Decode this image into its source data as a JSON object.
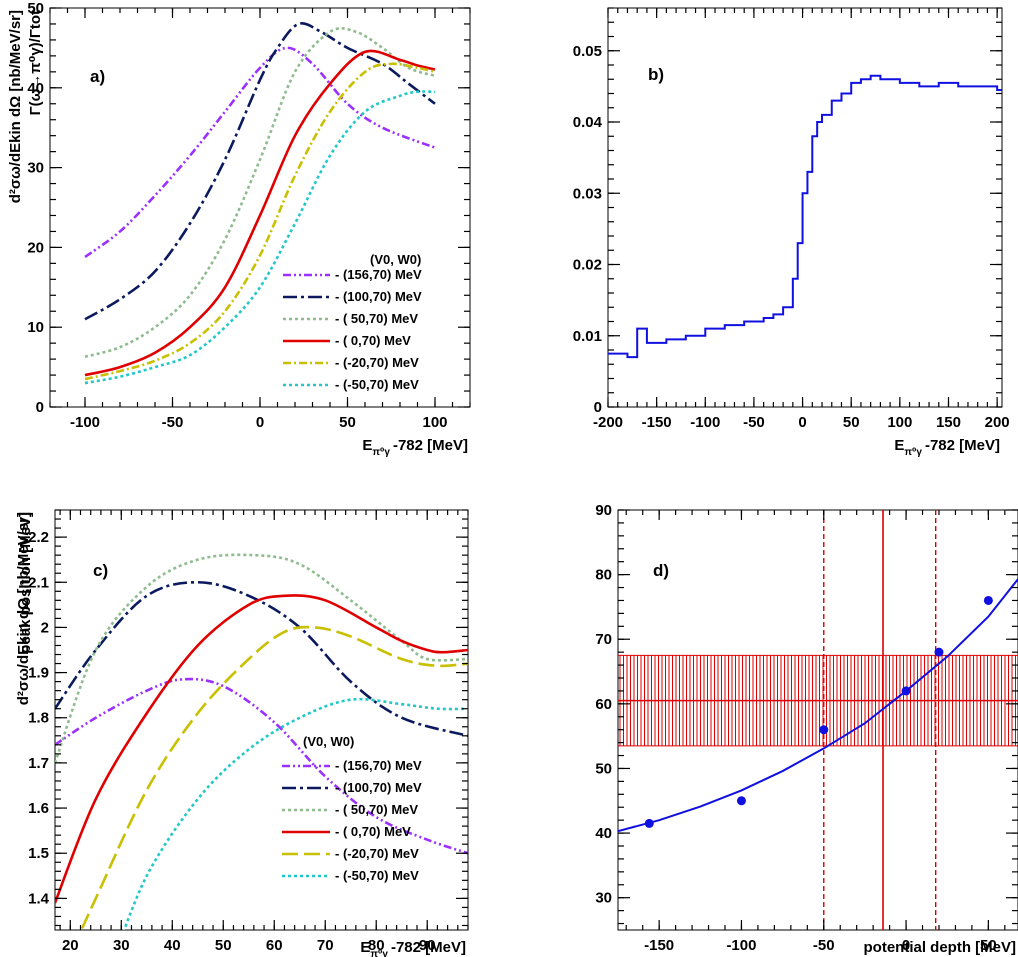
{
  "chart_data": [
    {
      "panel": "a",
      "type": "line",
      "label": "a)",
      "xlabel_main": "E",
      "xlabel_sub": "π⁰γ",
      "xlabel_rest": "-782 [MeV]",
      "ylabel": "d²σω/dEkin dΩ [nb/MeV/sr]",
      "xlim": [
        -120,
        120
      ],
      "ylim": [
        0,
        50
      ],
      "xticks": [
        -100,
        -50,
        0,
        50,
        100
      ],
      "yticks": [
        0,
        10,
        20,
        30,
        40,
        50
      ],
      "legend_title": "(V0, W0)",
      "legend_position": "bottom-right",
      "series": [
        {
          "name": "- (156,70) MeV",
          "color": "#9b30ff",
          "dash": "8,3,2,3,2,3",
          "x": [
            -100,
            -80,
            -60,
            -40,
            -20,
            0,
            15,
            30,
            50,
            70,
            100
          ],
          "y": [
            18.8,
            22,
            26.5,
            31.5,
            37,
            42.5,
            45,
            43,
            38,
            35,
            32.5
          ]
        },
        {
          "name": "- (100,70) MeV",
          "color": "#0b1a5e",
          "dash": "14,4,3,4",
          "x": [
            -100,
            -80,
            -60,
            -40,
            -20,
            0,
            10,
            22,
            35,
            50,
            70,
            85,
            100
          ],
          "y": [
            11,
            13.5,
            17,
            23,
            31,
            41,
            45,
            48,
            47,
            45,
            43,
            40.5,
            38
          ]
        },
        {
          "name": "- ( 50,70) MeV",
          "color": "#8fbc8f",
          "dash": "3,3",
          "x": [
            -100,
            -80,
            -60,
            -40,
            -20,
            0,
            20,
            40,
            55,
            70,
            85,
            100
          ],
          "y": [
            6.3,
            7.5,
            10,
            14,
            21,
            31,
            42,
            47,
            47,
            45,
            42.5,
            41.5
          ]
        },
        {
          "name": "- (  0,70) MeV",
          "color": "#e00000",
          "dash": "",
          "x": [
            -100,
            -80,
            -60,
            -40,
            -20,
            0,
            20,
            40,
            60,
            80,
            90,
            100
          ],
          "y": [
            4,
            5,
            6.8,
            10,
            15,
            24,
            34,
            40.5,
            44.5,
            43.5,
            42.8,
            42.3
          ]
        },
        {
          "name": "- (-20,70) MeV",
          "color": "#c8c000",
          "dash": "8,3,2,3",
          "x": [
            -100,
            -80,
            -60,
            -40,
            -20,
            0,
            20,
            40,
            60,
            75,
            90,
            100
          ],
          "y": [
            3.5,
            4.5,
            5.8,
            8,
            12,
            19,
            29,
            37,
            42,
            43,
            42.5,
            42
          ]
        },
        {
          "name": "- (-50,70) MeV",
          "color": "#20c8c8",
          "dash": "3,3",
          "x": [
            -100,
            -80,
            -60,
            -40,
            -20,
            0,
            20,
            40,
            60,
            80,
            90,
            100
          ],
          "y": [
            3,
            3.8,
            5,
            6.5,
            10,
            15,
            23,
            31.5,
            37,
            39,
            39.5,
            39.5
          ]
        }
      ]
    },
    {
      "panel": "b",
      "type": "line",
      "label": "b)",
      "xlabel_main": "E",
      "xlabel_sub": "π⁰γ",
      "xlabel_rest": "-782 [MeV]",
      "ylabel": "Γ(ω→π⁰γ)/Γtot",
      "xlim": [
        -200,
        205
      ],
      "ylim": [
        0,
        0.056
      ],
      "xticks": [
        -200,
        -150,
        -100,
        -50,
        0,
        50,
        100,
        150,
        200
      ],
      "yticks": [
        0,
        0.01,
        0.02,
        0.03,
        0.04,
        0.05
      ],
      "ytick_labels": [
        "0",
        "0.01",
        "0.02",
        "0.03",
        "0.04",
        "0.05"
      ],
      "series": [
        {
          "name": "",
          "color": "#1010e0",
          "step": true,
          "x": [
            -200,
            -180,
            -170,
            -160,
            -140,
            -120,
            -100,
            -80,
            -60,
            -40,
            -30,
            -20,
            -10,
            -5,
            0,
            5,
            10,
            15,
            20,
            30,
            40,
            50,
            60,
            70,
            80,
            100,
            120,
            140,
            160,
            180,
            200,
            205
          ],
          "y": [
            0.0075,
            0.007,
            0.011,
            0.009,
            0.0095,
            0.01,
            0.011,
            0.0115,
            0.012,
            0.0125,
            0.013,
            0.014,
            0.018,
            0.023,
            0.03,
            0.033,
            0.038,
            0.04,
            0.041,
            0.043,
            0.044,
            0.0455,
            0.046,
            0.0465,
            0.046,
            0.0455,
            0.045,
            0.0455,
            0.045,
            0.045,
            0.0445,
            0.0445
          ]
        }
      ]
    },
    {
      "panel": "c",
      "type": "line",
      "label": "c)",
      "xlabel_main": "E",
      "xlabel_sub": "π⁰γ",
      "xlabel_rest": "-782 [MeV]",
      "ylabel": "d²σω/dEkin dΩ [nb/MeV/sr]",
      "xlim": [
        17,
        98
      ],
      "ylim": [
        1.33,
        2.26
      ],
      "xticks": [
        20,
        30,
        40,
        50,
        60,
        70,
        80,
        90
      ],
      "yticks": [
        1.4,
        1.5,
        1.6,
        1.7,
        1.8,
        1.9,
        2.0,
        2.1,
        2.2
      ],
      "ytick_labels": [
        "1.4",
        "1.5",
        "1.6",
        "1.7",
        "1.8",
        "1.9",
        "2",
        "2.1",
        "2.2"
      ],
      "legend_title": "(V0, W0)",
      "legend_position": "bottom-right",
      "series": [
        {
          "name": "- (156,70) MeV",
          "color": "#9b30ff",
          "dash": "8,3,2,3,2,3",
          "x": [
            17,
            25,
            35,
            42,
            50,
            60,
            70,
            80,
            90,
            98
          ],
          "y": [
            1.74,
            1.8,
            1.86,
            1.885,
            1.87,
            1.79,
            1.67,
            1.58,
            1.53,
            1.5
          ]
        },
        {
          "name": "- (100,70) MeV",
          "color": "#0b1a5e",
          "dash": "14,4,3,4",
          "x": [
            17,
            25,
            35,
            45,
            55,
            65,
            75,
            85,
            98
          ],
          "y": [
            1.82,
            1.95,
            2.07,
            2.1,
            2.07,
            2.0,
            1.88,
            1.8,
            1.76
          ]
        },
        {
          "name": "- ( 50,70) MeV",
          "color": "#8fbc8f",
          "dash": "3,3",
          "x": [
            17,
            25,
            35,
            45,
            56,
            65,
            75,
            85,
            90,
            98
          ],
          "y": [
            1.7,
            1.95,
            2.09,
            2.15,
            2.16,
            2.14,
            2.06,
            1.97,
            1.93,
            1.93
          ]
        },
        {
          "name": "- (  0,70) MeV",
          "color": "#e00000",
          "dash": "",
          "x": [
            17,
            25,
            35,
            45,
            55,
            62,
            70,
            80,
            85,
            90,
            93,
            98
          ],
          "y": [
            1.39,
            1.62,
            1.81,
            1.96,
            2.05,
            2.07,
            2.06,
            2.0,
            1.97,
            1.95,
            1.945,
            1.95
          ]
        },
        {
          "name": "- (-20,70) MeV",
          "color": "#c8c000",
          "dash": "16,6",
          "x": [
            17,
            25,
            35,
            45,
            55,
            62,
            68,
            75,
            85,
            92,
            98
          ],
          "y": [
            1.2,
            1.4,
            1.64,
            1.81,
            1.93,
            1.99,
            2.0,
            1.98,
            1.93,
            1.915,
            1.92
          ]
        },
        {
          "name": "- (-50,70) MeV",
          "color": "#20c8c8",
          "dash": "3,3",
          "x": [
            28,
            35,
            45,
            55,
            65,
            75,
            85,
            92,
            98
          ],
          "y": [
            1.25,
            1.45,
            1.62,
            1.73,
            1.8,
            1.84,
            1.83,
            1.82,
            1.82
          ]
        }
      ]
    },
    {
      "panel": "d",
      "type": "scatter",
      "label": "d)",
      "xlabel": "potential depth [MeV]",
      "ylabel": "peak position [MeV]",
      "xlim": [
        -175,
        68
      ],
      "ylim": [
        25,
        90
      ],
      "xticks": [
        -150,
        -100,
        -50,
        0,
        50
      ],
      "yticks": [
        30,
        40,
        50,
        60,
        70,
        80,
        90
      ],
      "points": {
        "color": "#1010e0",
        "x": [
          -156,
          -100,
          -50,
          0,
          20,
          50
        ],
        "y": [
          41.5,
          45,
          56,
          62,
          68,
          76
        ]
      },
      "fit": {
        "color": "#1010e0",
        "x": [
          -175,
          -150,
          -125,
          -100,
          -75,
          -50,
          -25,
          0,
          25,
          50,
          68
        ],
        "y": [
          40.3,
          42.0,
          44.1,
          46.6,
          49.6,
          53.1,
          57.0,
          62.0,
          67.3,
          73.5,
          79.3
        ]
      },
      "band": {
        "color": "#e00000",
        "center": 60.5,
        "low": 53.5,
        "high": 67.5
      },
      "vlines": {
        "color": "#e00000",
        "solid": -14,
        "dashed": [
          -50,
          18
        ]
      }
    }
  ]
}
